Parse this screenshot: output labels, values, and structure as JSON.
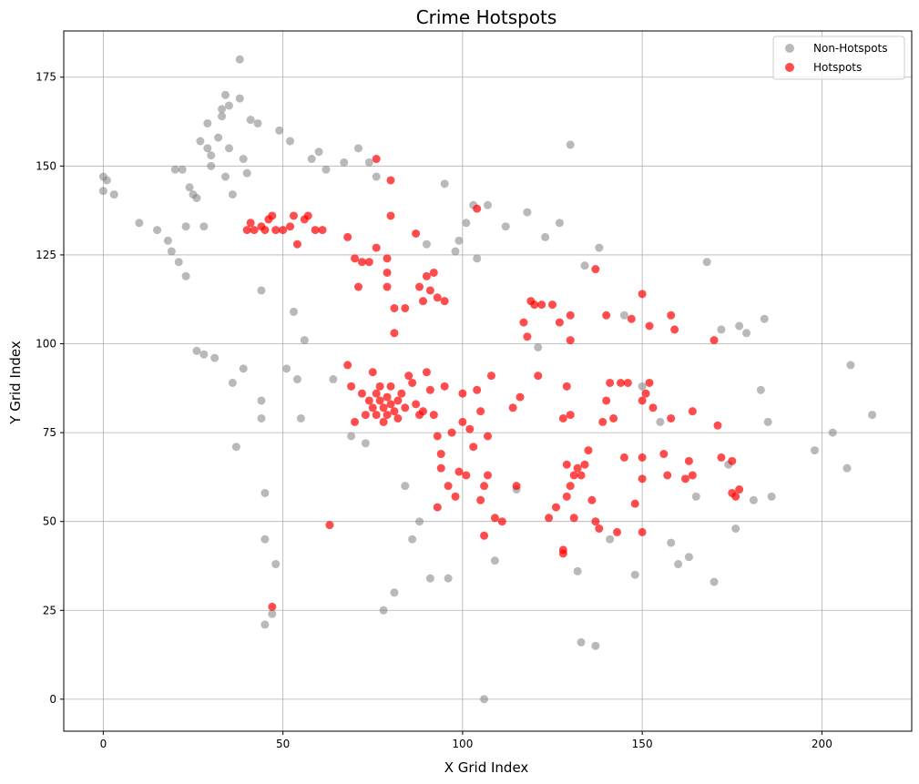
{
  "chart_data": {
    "type": "scatter",
    "title": "Crime Hotspots",
    "xlabel": "X Grid Index",
    "ylabel": "Y Grid Index",
    "xlim": [
      -11,
      225
    ],
    "ylim": [
      -9,
      188
    ],
    "x_ticks": [
      0,
      50,
      100,
      150,
      200
    ],
    "y_ticks": [
      0,
      25,
      50,
      75,
      100,
      125,
      150,
      175
    ],
    "x_tick_labels": [
      "0",
      "50",
      "100",
      "150",
      "200"
    ],
    "y_tick_labels": [
      "0",
      "25",
      "50",
      "75",
      "100",
      "125",
      "150",
      "175"
    ],
    "grid": true,
    "legend_position": "top-right",
    "series": [
      {
        "name": "Non-Hotspots",
        "color": "#808080",
        "opacity": 0.55,
        "points": [
          [
            0,
            147
          ],
          [
            0,
            143
          ],
          [
            1,
            146
          ],
          [
            3,
            142
          ],
          [
            10,
            134
          ],
          [
            15,
            132
          ],
          [
            18,
            129
          ],
          [
            19,
            126
          ],
          [
            20,
            149
          ],
          [
            21,
            123
          ],
          [
            22,
            149
          ],
          [
            23,
            119
          ],
          [
            23,
            133
          ],
          [
            24,
            144
          ],
          [
            25,
            142
          ],
          [
            26,
            141
          ],
          [
            26,
            98
          ],
          [
            27,
            157
          ],
          [
            28,
            133
          ],
          [
            28,
            97
          ],
          [
            29,
            162
          ],
          [
            29,
            155
          ],
          [
            30,
            153
          ],
          [
            30,
            150
          ],
          [
            31,
            96
          ],
          [
            32,
            158
          ],
          [
            33,
            166
          ],
          [
            33,
            164
          ],
          [
            34,
            170
          ],
          [
            34,
            147
          ],
          [
            35,
            167
          ],
          [
            35,
            155
          ],
          [
            36,
            89
          ],
          [
            36,
            142
          ],
          [
            37,
            71
          ],
          [
            38,
            180
          ],
          [
            38,
            169
          ],
          [
            39,
            152
          ],
          [
            39,
            93
          ],
          [
            40,
            148
          ],
          [
            41,
            163
          ],
          [
            43,
            162
          ],
          [
            44,
            115
          ],
          [
            44,
            84
          ],
          [
            44,
            79
          ],
          [
            45,
            58
          ],
          [
            45,
            45
          ],
          [
            45,
            21
          ],
          [
            47,
            24
          ],
          [
            48,
            38
          ],
          [
            49,
            160
          ],
          [
            51,
            93
          ],
          [
            52,
            157
          ],
          [
            53,
            109
          ],
          [
            54,
            90
          ],
          [
            55,
            79
          ],
          [
            56,
            101
          ],
          [
            58,
            152
          ],
          [
            60,
            154
          ],
          [
            62,
            149
          ],
          [
            64,
            90
          ],
          [
            67,
            151
          ],
          [
            69,
            74
          ],
          [
            71,
            155
          ],
          [
            73,
            72
          ],
          [
            74,
            151
          ],
          [
            76,
            147
          ],
          [
            78,
            25
          ],
          [
            81,
            30
          ],
          [
            84,
            60
          ],
          [
            86,
            45
          ],
          [
            88,
            50
          ],
          [
            90,
            128
          ],
          [
            91,
            34
          ],
          [
            95,
            145
          ],
          [
            96,
            34
          ],
          [
            98,
            126
          ],
          [
            99,
            129
          ],
          [
            101,
            134
          ],
          [
            103,
            139
          ],
          [
            104,
            124
          ],
          [
            106,
            0
          ],
          [
            107,
            139
          ],
          [
            109,
            39
          ],
          [
            112,
            133
          ],
          [
            115,
            59
          ],
          [
            118,
            137
          ],
          [
            121,
            99
          ],
          [
            123,
            130
          ],
          [
            127,
            134
          ],
          [
            130,
            156
          ],
          [
            132,
            36
          ],
          [
            133,
            16
          ],
          [
            134,
            122
          ],
          [
            137,
            15
          ],
          [
            138,
            127
          ],
          [
            141,
            45
          ],
          [
            145,
            108
          ],
          [
            148,
            35
          ],
          [
            150,
            88
          ],
          [
            155,
            78
          ],
          [
            158,
            44
          ],
          [
            160,
            38
          ],
          [
            163,
            40
          ],
          [
            165,
            57
          ],
          [
            168,
            123
          ],
          [
            170,
            33
          ],
          [
            172,
            104
          ],
          [
            174,
            66
          ],
          [
            176,
            48
          ],
          [
            177,
            105
          ],
          [
            179,
            103
          ],
          [
            181,
            56
          ],
          [
            183,
            87
          ],
          [
            184,
            107
          ],
          [
            185,
            78
          ],
          [
            186,
            57
          ],
          [
            198,
            70
          ],
          [
            203,
            75
          ],
          [
            207,
            65
          ],
          [
            208,
            94
          ],
          [
            214,
            80
          ]
        ]
      },
      {
        "name": "Hotspots",
        "color": "#ff0000",
        "opacity": 0.7,
        "points": [
          [
            40,
            132
          ],
          [
            41,
            134
          ],
          [
            42,
            132
          ],
          [
            44,
            133
          ],
          [
            45,
            132
          ],
          [
            46,
            135
          ],
          [
            47,
            136
          ],
          [
            48,
            132
          ],
          [
            50,
            132
          ],
          [
            52,
            133
          ],
          [
            53,
            136
          ],
          [
            54,
            128
          ],
          [
            56,
            135
          ],
          [
            57,
            136
          ],
          [
            59,
            132
          ],
          [
            61,
            132
          ],
          [
            68,
            130
          ],
          [
            70,
            124
          ],
          [
            71,
            116
          ],
          [
            72,
            123
          ],
          [
            74,
            123
          ],
          [
            76,
            127
          ],
          [
            76,
            152
          ],
          [
            79,
            116
          ],
          [
            79,
            120
          ],
          [
            79,
            124
          ],
          [
            80,
            136
          ],
          [
            80,
            146
          ],
          [
            81,
            110
          ],
          [
            81,
            103
          ],
          [
            84,
            110
          ],
          [
            87,
            131
          ],
          [
            88,
            116
          ],
          [
            89,
            112
          ],
          [
            90,
            119
          ],
          [
            91,
            115
          ],
          [
            92,
            120
          ],
          [
            93,
            113
          ],
          [
            95,
            112
          ],
          [
            68,
            94
          ],
          [
            69,
            88
          ],
          [
            70,
            78
          ],
          [
            72,
            86
          ],
          [
            73,
            80
          ],
          [
            74,
            84
          ],
          [
            75,
            82
          ],
          [
            75,
            92
          ],
          [
            76,
            80
          ],
          [
            76,
            86
          ],
          [
            77,
            84
          ],
          [
            77,
            88
          ],
          [
            78,
            82
          ],
          [
            78,
            78
          ],
          [
            79,
            85
          ],
          [
            79,
            80
          ],
          [
            80,
            83
          ],
          [
            80,
            88
          ],
          [
            81,
            81
          ],
          [
            82,
            84
          ],
          [
            82,
            79
          ],
          [
            83,
            86
          ],
          [
            84,
            82
          ],
          [
            85,
            91
          ],
          [
            86,
            89
          ],
          [
            87,
            83
          ],
          [
            88,
            80
          ],
          [
            89,
            81
          ],
          [
            90,
            92
          ],
          [
            91,
            87
          ],
          [
            92,
            80
          ],
          [
            93,
            74
          ],
          [
            93,
            54
          ],
          [
            94,
            69
          ],
          [
            94,
            65
          ],
          [
            95,
            88
          ],
          [
            96,
            60
          ],
          [
            97,
            75
          ],
          [
            98,
            57
          ],
          [
            99,
            64
          ],
          [
            100,
            78
          ],
          [
            100,
            86
          ],
          [
            101,
            63
          ],
          [
            102,
            76
          ],
          [
            103,
            71
          ],
          [
            104,
            87
          ],
          [
            104,
            138
          ],
          [
            105,
            81
          ],
          [
            105,
            56
          ],
          [
            106,
            60
          ],
          [
            106,
            46
          ],
          [
            107,
            63
          ],
          [
            107,
            74
          ],
          [
            108,
            91
          ],
          [
            109,
            51
          ],
          [
            111,
            50
          ],
          [
            114,
            82
          ],
          [
            115,
            60
          ],
          [
            116,
            85
          ],
          [
            117,
            106
          ],
          [
            118,
            102
          ],
          [
            119,
            112
          ],
          [
            120,
            111
          ],
          [
            121,
            91
          ],
          [
            122,
            111
          ],
          [
            124,
            51
          ],
          [
            125,
            111
          ],
          [
            126,
            54
          ],
          [
            127,
            106
          ],
          [
            128,
            41
          ],
          [
            128,
            42
          ],
          [
            128,
            79
          ],
          [
            129,
            57
          ],
          [
            129,
            66
          ],
          [
            129,
            88
          ],
          [
            130,
            108
          ],
          [
            130,
            101
          ],
          [
            130,
            80
          ],
          [
            130,
            60
          ],
          [
            131,
            63
          ],
          [
            131,
            51
          ],
          [
            132,
            65
          ],
          [
            133,
            63
          ],
          [
            134,
            66
          ],
          [
            135,
            70
          ],
          [
            136,
            56
          ],
          [
            137,
            50
          ],
          [
            137,
            121
          ],
          [
            138,
            48
          ],
          [
            139,
            78
          ],
          [
            140,
            84
          ],
          [
            140,
            108
          ],
          [
            141,
            89
          ],
          [
            142,
            79
          ],
          [
            143,
            47
          ],
          [
            144,
            89
          ],
          [
            145,
            68
          ],
          [
            146,
            89
          ],
          [
            147,
            107
          ],
          [
            148,
            55
          ],
          [
            150,
            47
          ],
          [
            150,
            62
          ],
          [
            150,
            68
          ],
          [
            150,
            84
          ],
          [
            150,
            114
          ],
          [
            151,
            86
          ],
          [
            152,
            105
          ],
          [
            152,
            89
          ],
          [
            153,
            82
          ],
          [
            156,
            69
          ],
          [
            157,
            63
          ],
          [
            158,
            108
          ],
          [
            158,
            79
          ],
          [
            159,
            104
          ],
          [
            162,
            62
          ],
          [
            163,
            67
          ],
          [
            164,
            81
          ],
          [
            164,
            63
          ],
          [
            170,
            101
          ],
          [
            171,
            77
          ],
          [
            172,
            68
          ],
          [
            175,
            67
          ],
          [
            175,
            58
          ],
          [
            176,
            57
          ],
          [
            177,
            59
          ],
          [
            47,
            26
          ],
          [
            63,
            49
          ]
        ]
      }
    ]
  },
  "legend": {
    "items": [
      {
        "label": "Non-Hotspots",
        "color": "#808080"
      },
      {
        "label": "Hotspots",
        "color": "#ff0000"
      }
    ]
  }
}
